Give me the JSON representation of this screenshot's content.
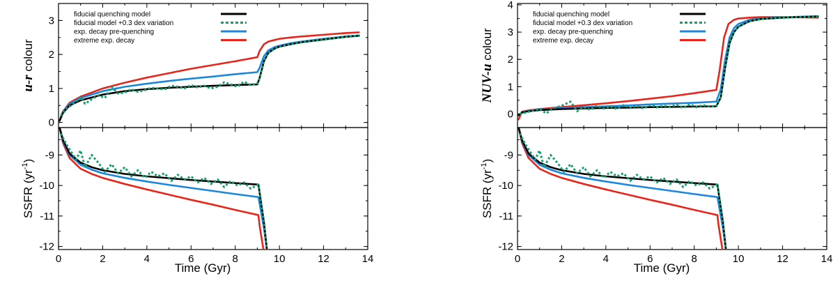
{
  "colors": {
    "fiducial": "#000000",
    "variation": "#119e6e",
    "expdecay": "#1a86dc",
    "extreme": "#e8251b"
  },
  "chart_data": [
    {
      "type": "line",
      "panel": "top-left",
      "ylabel_italic": "u-r",
      "ylabel_rest": " colour",
      "xlim": [
        0,
        14
      ],
      "ylim": [
        -0.15,
        3.5
      ],
      "yticks": [
        0,
        1,
        2,
        3
      ],
      "legend_position": "top-left",
      "legend": [
        "fiducial quenching model",
        "fiducial model +0.3 dex variation",
        "exp. decay pre-quenching",
        "extreme exp. decay"
      ],
      "series": [
        {
          "name": "fiducial quenching model",
          "style": "solid",
          "color": "#000000",
          "x": [
            0.05,
            0.2,
            0.5,
            1,
            2,
            3,
            4,
            5,
            6,
            7,
            8,
            9,
            9.1,
            9.3,
            9.5,
            9.8,
            10,
            10.5,
            11,
            12,
            13,
            13.6
          ],
          "y": [
            0.05,
            0.28,
            0.5,
            0.65,
            0.82,
            0.92,
            0.98,
            1.02,
            1.05,
            1.08,
            1.1,
            1.12,
            1.3,
            1.8,
            2.05,
            2.18,
            2.23,
            2.3,
            2.36,
            2.44,
            2.52,
            2.55
          ]
        },
        {
          "name": "fiducial model +0.3 dex variation",
          "style": "dotted",
          "color": "#119e6e",
          "x": [
            0.1,
            0.4,
            0.8,
            1.0,
            1.2,
            1.5,
            1.8,
            2.1,
            2.4,
            2.7,
            3.0,
            3.3,
            3.6,
            3.9,
            4.2,
            4.5,
            4.8,
            5.1,
            5.4,
            5.7,
            6.0,
            6.3,
            6.6,
            6.9,
            7.2,
            7.5,
            7.8,
            8.1,
            8.4,
            8.7,
            9.0,
            9.1,
            9.3,
            9.5,
            9.8,
            10,
            10.5,
            11,
            12,
            13,
            13.6
          ],
          "y": [
            0.2,
            0.42,
            0.62,
            0.75,
            0.55,
            0.68,
            0.8,
            0.72,
            1.05,
            0.85,
            0.88,
            0.98,
            0.9,
            0.95,
            1.02,
            1.0,
            0.97,
            1.08,
            1.05,
            1.0,
            1.1,
            1.03,
            1.08,
            1.0,
            1.05,
            1.18,
            1.12,
            1.05,
            1.2,
            1.1,
            1.15,
            1.3,
            1.8,
            2.05,
            2.18,
            2.23,
            2.3,
            2.36,
            2.44,
            2.52,
            2.55
          ]
        },
        {
          "name": "exp. decay pre-quenching",
          "style": "solid",
          "color": "#1a86dc",
          "x": [
            0.05,
            0.2,
            0.5,
            1,
            2,
            3,
            4,
            5,
            6,
            7,
            8,
            9,
            9.1,
            9.3,
            9.5,
            9.8,
            10,
            10.5,
            11,
            12,
            13,
            13.6
          ],
          "y": [
            0.05,
            0.3,
            0.55,
            0.72,
            0.92,
            1.05,
            1.14,
            1.22,
            1.29,
            1.35,
            1.42,
            1.48,
            1.6,
            1.95,
            2.12,
            2.22,
            2.26,
            2.33,
            2.38,
            2.46,
            2.53,
            2.56
          ]
        },
        {
          "name": "extreme exp. decay",
          "style": "solid",
          "color": "#e8251b",
          "x": [
            0.05,
            0.2,
            0.5,
            1,
            2,
            3,
            4,
            5,
            6,
            7,
            8,
            9,
            9.1,
            9.3,
            9.5,
            9.8,
            10,
            10.5,
            11,
            12,
            13,
            13.6
          ],
          "y": [
            0.05,
            0.32,
            0.58,
            0.76,
            1.0,
            1.17,
            1.32,
            1.45,
            1.58,
            1.69,
            1.8,
            1.92,
            2.1,
            2.3,
            2.38,
            2.43,
            2.46,
            2.5,
            2.53,
            2.58,
            2.63,
            2.65
          ]
        }
      ]
    },
    {
      "type": "line",
      "panel": "bottom-left",
      "ylabel": "SSFR (yr",
      "ylabel_sup": "-1",
      "ylabel_close": ")",
      "xlabel": "Time (Gyr)",
      "xlim": [
        0,
        14
      ],
      "ylim": [
        -12.1,
        -8.1
      ],
      "yticks": [
        -9,
        -10,
        -11,
        -12
      ],
      "xticks": [
        0,
        2,
        4,
        6,
        8,
        10,
        12,
        14
      ],
      "series": [
        {
          "name": "fiducial quenching model",
          "style": "solid",
          "color": "#000000",
          "x": [
            0.05,
            0.2,
            0.5,
            1,
            1.5,
            2,
            3,
            4,
            5,
            6,
            7,
            8,
            9.05,
            9.3,
            9.45
          ],
          "y": [
            -8.1,
            -8.5,
            -8.95,
            -9.25,
            -9.4,
            -9.5,
            -9.62,
            -9.7,
            -9.76,
            -9.82,
            -9.87,
            -9.92,
            -9.97,
            -11.2,
            -12.2
          ]
        },
        {
          "name": "fiducial model +0.3 dex variation",
          "style": "dotted",
          "color": "#119e6e",
          "x": [
            0.1,
            0.4,
            0.8,
            1.0,
            1.2,
            1.5,
            1.8,
            2.1,
            2.4,
            2.7,
            3.0,
            3.3,
            3.6,
            3.9,
            4.2,
            4.5,
            4.8,
            5.1,
            5.4,
            5.7,
            6.0,
            6.3,
            6.6,
            6.9,
            7.2,
            7.5,
            7.8,
            8.1,
            8.4,
            8.7,
            9.05,
            9.3,
            9.45
          ],
          "y": [
            -8.3,
            -8.7,
            -9.15,
            -8.85,
            -9.4,
            -9.0,
            -9.25,
            -9.55,
            -9.3,
            -9.6,
            -9.4,
            -9.7,
            -9.5,
            -9.75,
            -9.55,
            -9.7,
            -9.6,
            -9.85,
            -9.65,
            -9.8,
            -9.7,
            -9.9,
            -9.75,
            -9.95,
            -9.8,
            -10.05,
            -9.85,
            -10.0,
            -9.9,
            -10.1,
            -9.97,
            -11.2,
            -12.2
          ]
        },
        {
          "name": "exp. decay pre-quenching",
          "style": "solid",
          "color": "#1a86dc",
          "x": [
            0.05,
            0.2,
            0.5,
            1,
            1.5,
            2,
            3,
            4,
            5,
            6,
            7,
            8,
            9.05,
            9.3,
            9.45
          ],
          "y": [
            -8.1,
            -8.55,
            -9.0,
            -9.32,
            -9.48,
            -9.6,
            -9.75,
            -9.87,
            -9.98,
            -10.08,
            -10.18,
            -10.28,
            -10.38,
            -11.4,
            -12.2
          ]
        },
        {
          "name": "extreme exp. decay",
          "style": "solid",
          "color": "#e8251b",
          "x": [
            0.05,
            0.2,
            0.5,
            1,
            1.5,
            2,
            3,
            4,
            5,
            6,
            7,
            8,
            9.05,
            9.1,
            9.3
          ],
          "y": [
            -8.1,
            -8.6,
            -9.1,
            -9.45,
            -9.62,
            -9.75,
            -9.95,
            -10.13,
            -10.3,
            -10.47,
            -10.63,
            -10.8,
            -10.97,
            -11.3,
            -12.2
          ]
        }
      ]
    },
    {
      "type": "line",
      "panel": "top-right",
      "ylabel_italic": "NUV-u",
      "ylabel_rest": " colour",
      "xlim": [
        0,
        14
      ],
      "ylim": [
        -0.5,
        4.05
      ],
      "yticks": [
        0,
        1,
        2,
        3,
        4
      ],
      "legend_position": "top-left",
      "legend": [
        "fiducial quenching model",
        "fiducial model +0.3 dex variation",
        "exp. decay pre-quenching",
        "extreme exp. decay"
      ],
      "series": [
        {
          "name": "fiducial quenching model",
          "style": "solid",
          "color": "#000000",
          "x": [
            0.05,
            0.2,
            0.5,
            1,
            2,
            3,
            4,
            5,
            6,
            7,
            8,
            9,
            9.2,
            9.4,
            9.6,
            9.8,
            10,
            10.5,
            11,
            12,
            13,
            13.6
          ],
          "y": [
            -0.05,
            0.05,
            0.1,
            0.14,
            0.18,
            0.2,
            0.22,
            0.23,
            0.25,
            0.26,
            0.27,
            0.28,
            0.6,
            1.7,
            2.6,
            3.0,
            3.2,
            3.4,
            3.48,
            3.53,
            3.56,
            3.58
          ]
        },
        {
          "name": "fiducial model +0.3 dex variation",
          "style": "dotted",
          "color": "#119e6e",
          "x": [
            0.1,
            0.5,
            1.0,
            1.3,
            1.6,
            2.0,
            2.4,
            2.7,
            3.0,
            3.3,
            3.6,
            3.9,
            4.2,
            4.5,
            4.8,
            5.1,
            5.4,
            5.7,
            6.0,
            6.3,
            6.6,
            6.9,
            7.2,
            7.5,
            7.8,
            8.1,
            8.4,
            8.7,
            9.0,
            9.2,
            9.4,
            9.6,
            9.8,
            10,
            10.5,
            11,
            12,
            13,
            13.6
          ],
          "y": [
            0.0,
            0.08,
            0.18,
            0.02,
            0.2,
            0.3,
            0.45,
            0.1,
            0.25,
            0.15,
            0.3,
            0.2,
            0.28,
            0.18,
            0.32,
            0.22,
            0.3,
            0.2,
            0.34,
            0.24,
            0.3,
            0.26,
            0.33,
            0.22,
            0.35,
            0.25,
            0.32,
            0.27,
            0.3,
            0.6,
            1.7,
            2.6,
            3.0,
            3.2,
            3.4,
            3.48,
            3.53,
            3.56,
            3.58
          ]
        },
        {
          "name": "exp. decay pre-quenching",
          "style": "solid",
          "color": "#1a86dc",
          "x": [
            0.05,
            0.2,
            0.5,
            1,
            2,
            3,
            4,
            5,
            6,
            7,
            8,
            9,
            9.2,
            9.4,
            9.6,
            9.8,
            10,
            10.5,
            11,
            12,
            13,
            13.6
          ],
          "y": [
            -0.05,
            0.06,
            0.12,
            0.16,
            0.21,
            0.25,
            0.28,
            0.31,
            0.35,
            0.38,
            0.41,
            0.45,
            0.9,
            2.0,
            2.8,
            3.15,
            3.3,
            3.45,
            3.5,
            3.54,
            3.57,
            3.58
          ]
        },
        {
          "name": "extreme exp. decay",
          "style": "solid",
          "color": "#e8251b",
          "x": [
            0.05,
            0.2,
            0.5,
            1,
            2,
            3,
            4,
            5,
            6,
            7,
            8,
            9,
            9.15,
            9.35,
            9.55,
            9.8,
            10,
            10.5,
            11,
            12,
            13,
            13.6
          ],
          "y": [
            -0.2,
            0.08,
            0.13,
            0.18,
            0.25,
            0.32,
            0.39,
            0.47,
            0.56,
            0.65,
            0.76,
            0.88,
            1.6,
            2.8,
            3.3,
            3.45,
            3.5,
            3.53,
            3.55,
            3.55,
            3.54,
            3.53
          ]
        }
      ]
    },
    {
      "type": "line",
      "panel": "bottom-right",
      "ylabel": "SSFR (yr",
      "ylabel_sup": "-1",
      "ylabel_close": ")",
      "xlabel": "Time (Gyr)",
      "xlim": [
        0,
        14
      ],
      "ylim": [
        -12.1,
        -8.1
      ],
      "yticks": [
        -9,
        -10,
        -11,
        -12
      ],
      "xticks": [
        0,
        2,
        4,
        6,
        8,
        10,
        12,
        14
      ],
      "series": [
        {
          "name": "fiducial quenching model",
          "style": "solid",
          "color": "#000000",
          "x": [
            0.05,
            0.2,
            0.5,
            1,
            1.5,
            2,
            3,
            4,
            5,
            6,
            7,
            8,
            9.05,
            9.3,
            9.45
          ],
          "y": [
            -8.1,
            -8.5,
            -8.95,
            -9.25,
            -9.4,
            -9.5,
            -9.62,
            -9.7,
            -9.76,
            -9.82,
            -9.87,
            -9.92,
            -9.97,
            -11.2,
            -12.2
          ]
        },
        {
          "name": "fiducial model +0.3 dex variation",
          "style": "dotted",
          "color": "#119e6e",
          "x": [
            0.1,
            0.4,
            0.8,
            1.0,
            1.2,
            1.5,
            1.8,
            2.1,
            2.4,
            2.7,
            3.0,
            3.3,
            3.6,
            3.9,
            4.2,
            4.5,
            4.8,
            5.1,
            5.4,
            5.7,
            6.0,
            6.3,
            6.6,
            6.9,
            7.2,
            7.5,
            7.8,
            8.1,
            8.4,
            8.7,
            9.05,
            9.3,
            9.45
          ],
          "y": [
            -8.3,
            -8.7,
            -9.15,
            -8.85,
            -9.4,
            -9.0,
            -9.25,
            -9.55,
            -9.3,
            -9.6,
            -9.4,
            -9.7,
            -9.5,
            -9.75,
            -9.55,
            -9.7,
            -9.6,
            -9.85,
            -9.65,
            -9.8,
            -9.7,
            -9.9,
            -9.75,
            -9.95,
            -9.8,
            -10.05,
            -9.85,
            -10.0,
            -9.9,
            -10.1,
            -9.97,
            -11.2,
            -12.2
          ]
        },
        {
          "name": "exp. decay pre-quenching",
          "style": "solid",
          "color": "#1a86dc",
          "x": [
            0.05,
            0.2,
            0.5,
            1,
            1.5,
            2,
            3,
            4,
            5,
            6,
            7,
            8,
            9.05,
            9.3,
            9.45
          ],
          "y": [
            -8.1,
            -8.55,
            -9.0,
            -9.32,
            -9.48,
            -9.6,
            -9.75,
            -9.87,
            -9.98,
            -10.08,
            -10.18,
            -10.28,
            -10.38,
            -11.4,
            -12.2
          ]
        },
        {
          "name": "extreme exp. decay",
          "style": "solid",
          "color": "#e8251b",
          "x": [
            0.05,
            0.2,
            0.5,
            1,
            1.5,
            2,
            3,
            4,
            5,
            6,
            7,
            8,
            9.05,
            9.1,
            9.3
          ],
          "y": [
            -8.1,
            -8.6,
            -9.1,
            -9.45,
            -9.62,
            -9.75,
            -9.95,
            -10.13,
            -10.3,
            -10.47,
            -10.63,
            -10.8,
            -10.97,
            -11.3,
            -12.2
          ]
        }
      ]
    }
  ]
}
